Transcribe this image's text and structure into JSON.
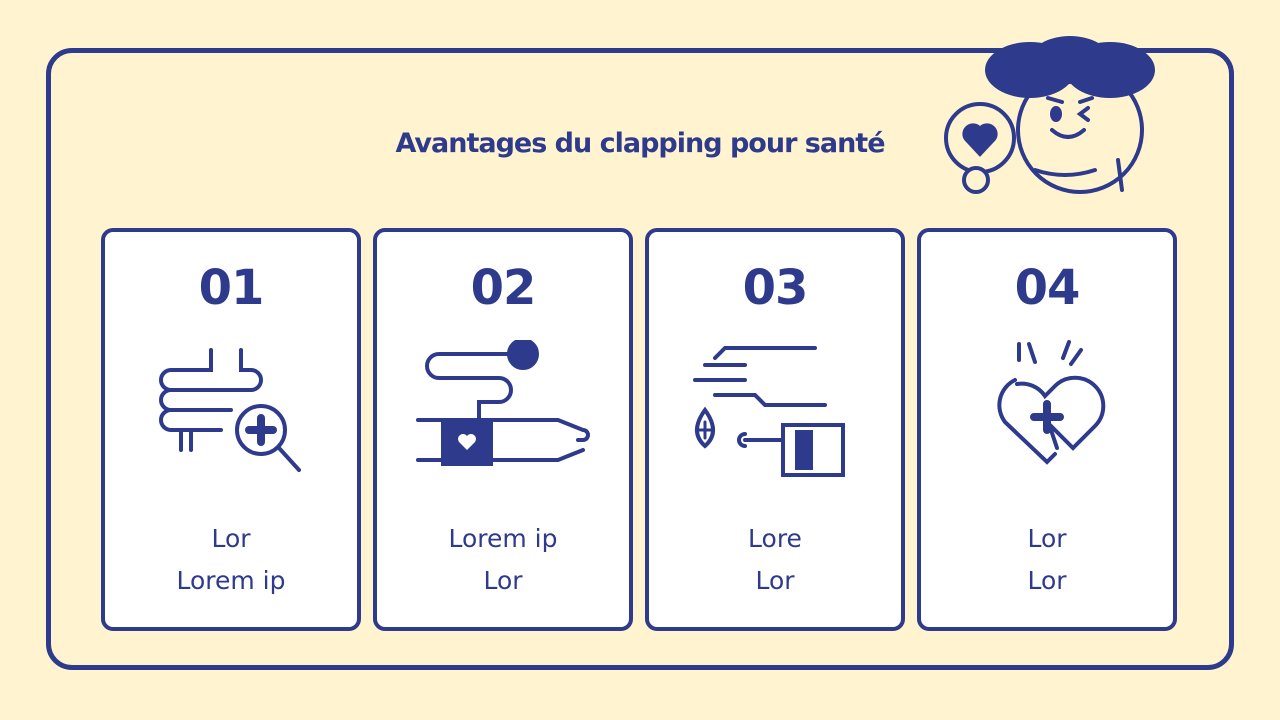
{
  "title": "Avantages du clapping pour santé",
  "colors": {
    "background": "#fff4cf",
    "accent": "#2e3a8c",
    "card": "#ffffff"
  },
  "cards": [
    {
      "number": "01",
      "icon": "intestine-magnifier-icon",
      "lines": [
        "Lor",
        "Lorem ip"
      ]
    },
    {
      "number": "02",
      "icon": "blood-pressure-arm-icon",
      "lines": [
        "Lorem ip",
        "Lor"
      ]
    },
    {
      "number": "03",
      "icon": "hand-sanitizer-icon",
      "lines": [
        "Lore",
        "Lor"
      ]
    },
    {
      "number": "04",
      "icon": "heart-health-icon",
      "lines": [
        "Lor",
        "Lor"
      ]
    }
  ]
}
